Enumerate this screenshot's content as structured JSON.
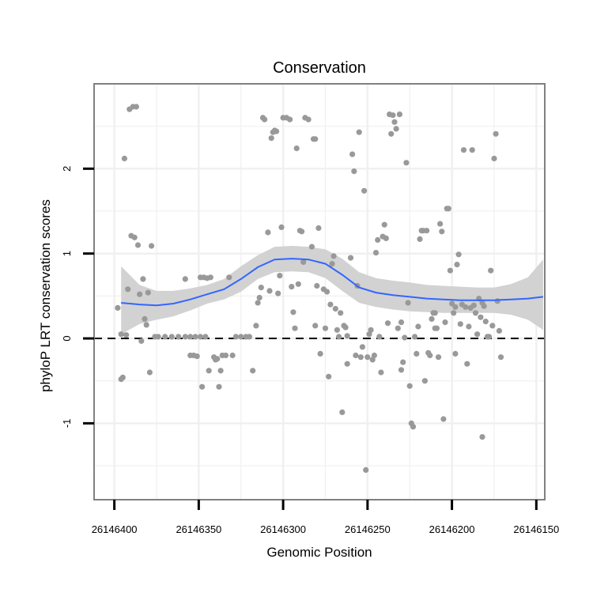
{
  "chart_data": {
    "type": "scatter",
    "title": "Conservation",
    "xlabel": "Genomic Position",
    "ylabel": "phyloP LRT conservation scores",
    "x_reversed": true,
    "xlim": [
      26146412,
      26146145
    ],
    "ylim": [
      -1.9,
      3.0
    ],
    "x_ticks": [
      26146400,
      26146350,
      26146300,
      26146250,
      26146200,
      26146150
    ],
    "x_tick_labels": [
      "26146400",
      "26146350",
      "26146300",
      "26146250",
      "26146200",
      "26146150"
    ],
    "y_ticks": [
      -1,
      0,
      1,
      2
    ],
    "y_tick_labels": [
      "-1",
      "0",
      "1",
      "2"
    ],
    "reference_line": {
      "y": 0,
      "style": "dashed"
    },
    "grid": true,
    "colors": {
      "points": "#999999",
      "smooth_line": "#3366ff",
      "ribbon": "#d2d2d2",
      "panel_border": "#808080",
      "grid": "#f0f0f0"
    },
    "smooth": {
      "x": [
        26146396,
        26146385,
        26146375,
        26146365,
        26146355,
        26146345,
        26146335,
        26146325,
        26146315,
        26146305,
        26146295,
        26146285,
        26146275,
        26146265,
        26146255,
        26146245,
        26146235,
        26146225,
        26146215,
        26146205,
        26146195,
        26146185,
        26146175,
        26146165,
        26146155,
        26146146
      ],
      "y": [
        0.42,
        0.4,
        0.39,
        0.41,
        0.46,
        0.52,
        0.58,
        0.7,
        0.84,
        0.93,
        0.94,
        0.93,
        0.88,
        0.75,
        0.6,
        0.54,
        0.51,
        0.49,
        0.47,
        0.46,
        0.45,
        0.45,
        0.45,
        0.46,
        0.47,
        0.49
      ],
      "lower": [
        0.05,
        0.17,
        0.22,
        0.26,
        0.33,
        0.41,
        0.46,
        0.55,
        0.7,
        0.78,
        0.79,
        0.78,
        0.71,
        0.56,
        0.42,
        0.37,
        0.34,
        0.32,
        0.31,
        0.3,
        0.3,
        0.3,
        0.3,
        0.28,
        0.22,
        0.1
      ],
      "upper": [
        0.85,
        0.63,
        0.56,
        0.56,
        0.59,
        0.63,
        0.7,
        0.85,
        0.98,
        1.08,
        1.09,
        1.08,
        1.05,
        0.94,
        0.78,
        0.71,
        0.68,
        0.66,
        0.63,
        0.62,
        0.61,
        0.6,
        0.6,
        0.64,
        0.72,
        0.93
      ]
    },
    "points": [
      [
        26146398,
        0.36
      ],
      [
        26146396,
        0.05
      ],
      [
        26146395,
        -0.46
      ],
      [
        26146396,
        -0.48
      ],
      [
        26146394,
        2.12
      ],
      [
        26146393,
        0.04
      ],
      [
        26146392,
        0.58
      ],
      [
        26146391,
        2.7
      ],
      [
        26146389,
        2.73
      ],
      [
        26146387,
        2.73
      ],
      [
        26146390,
        1.21
      ],
      [
        26146388,
        1.19
      ],
      [
        26146386,
        1.1
      ],
      [
        26146385,
        0.52
      ],
      [
        26146384,
        -0.03
      ],
      [
        26146383,
        0.7
      ],
      [
        26146382,
        0.23
      ],
      [
        26146381,
        0.16
      ],
      [
        26146380,
        0.54
      ],
      [
        26146379,
        -0.4
      ],
      [
        26146378,
        1.09
      ],
      [
        26146376,
        0.02
      ],
      [
        26146374,
        0.02
      ],
      [
        26146370,
        0.02
      ],
      [
        26146366,
        0.02
      ],
      [
        26146362,
        0.02
      ],
      [
        26146358,
        0.02
      ],
      [
        26146355,
        0.02
      ],
      [
        26146346,
        0.02
      ],
      [
        26146349,
        0.02
      ],
      [
        26146352,
        0.02
      ],
      [
        26146355,
        -0.2
      ],
      [
        26146353,
        -0.2
      ],
      [
        26146351,
        -0.21
      ],
      [
        26146349,
        0.72
      ],
      [
        26146347,
        0.72
      ],
      [
        26146345,
        0.71
      ],
      [
        26146343,
        0.72
      ],
      [
        26146348,
        -0.57
      ],
      [
        26146344,
        -0.38
      ],
      [
        26146341,
        -0.22
      ],
      [
        26146340,
        -0.25
      ],
      [
        26146339,
        -0.24
      ],
      [
        26146338,
        -0.57
      ],
      [
        26146337,
        -0.38
      ],
      [
        26146336,
        -0.2
      ],
      [
        26146334,
        -0.2
      ],
      [
        26146332,
        0.72
      ],
      [
        26146330,
        -0.2
      ],
      [
        26146328,
        0.02
      ],
      [
        26146325,
        0.02
      ],
      [
        26146322,
        0.02
      ],
      [
        26146320,
        0.02
      ],
      [
        26146318,
        -0.38
      ],
      [
        26146315,
        0.42
      ],
      [
        26146316,
        0.15
      ],
      [
        26146314,
        0.48
      ],
      [
        26146313,
        0.6
      ],
      [
        26146312,
        2.6
      ],
      [
        26146311,
        2.58
      ],
      [
        26146309,
        1.25
      ],
      [
        26146308,
        0.56
      ],
      [
        26146307,
        2.36
      ],
      [
        26146306,
        2.43
      ],
      [
        26146305,
        2.45
      ],
      [
        26146304,
        2.44
      ],
      [
        26146303,
        0.53
      ],
      [
        26146302,
        0.74
      ],
      [
        26146301,
        1.31
      ],
      [
        26146300,
        2.6
      ],
      [
        26146298,
        2.6
      ],
      [
        26146296,
        2.58
      ],
      [
        26146295,
        0.61
      ],
      [
        26146294,
        0.31
      ],
      [
        26146293,
        0.12
      ],
      [
        26146292,
        2.24
      ],
      [
        26146291,
        0.64
      ],
      [
        26146290,
        1.27
      ],
      [
        26146289,
        1.26
      ],
      [
        26146288,
        0.9
      ],
      [
        26146287,
        2.6
      ],
      [
        26146285,
        2.58
      ],
      [
        26146283,
        1.08
      ],
      [
        26146282,
        2.35
      ],
      [
        26146281,
        2.35
      ],
      [
        26146280,
        0.62
      ],
      [
        26146279,
        1.3
      ],
      [
        26146278,
        -0.18
      ],
      [
        26146276,
        0.58
      ],
      [
        26146275,
        0.12
      ],
      [
        26146274,
        0.55
      ],
      [
        26146273,
        -0.45
      ],
      [
        26146272,
        0.4
      ],
      [
        26146271,
        0.88
      ],
      [
        26146270,
        0.97
      ],
      [
        26146269,
        0.35
      ],
      [
        26146268,
        0.1
      ],
      [
        26146267,
        0.02
      ],
      [
        26146266,
        0.3
      ],
      [
        26146265,
        -0.87
      ],
      [
        26146264,
        0.15
      ],
      [
        26146263,
        0.13
      ],
      [
        26146262,
        -0.3
      ],
      [
        26146260,
        0.95
      ],
      [
        26146259,
        2.17
      ],
      [
        26146258,
        1.97
      ],
      [
        26146257,
        -0.2
      ],
      [
        26146256,
        0.62
      ],
      [
        26146255,
        2.43
      ],
      [
        26146254,
        -0.22
      ],
      [
        26146253,
        -0.1
      ],
      [
        26146252,
        1.74
      ],
      [
        26146251,
        -1.55
      ],
      [
        26146250,
        -0.22
      ],
      [
        26146249,
        0.05
      ],
      [
        26146248,
        0.1
      ],
      [
        26146247,
        -0.25
      ],
      [
        26146246,
        -0.2
      ],
      [
        26146245,
        1.01
      ],
      [
        26146244,
        1.16
      ],
      [
        26146243,
        0.02
      ],
      [
        26146242,
        -0.4
      ],
      [
        26146241,
        1.2
      ],
      [
        26146240,
        1.34
      ],
      [
        26146239,
        1.18
      ],
      [
        26146238,
        0.18
      ],
      [
        26146237,
        2.64
      ],
      [
        26146236,
        2.41
      ],
      [
        26146235,
        2.63
      ],
      [
        26146234,
        2.55
      ],
      [
        26146233,
        2.47
      ],
      [
        26146232,
        0.12
      ],
      [
        26146231,
        2.64
      ],
      [
        26146230,
        0.19
      ],
      [
        26146229,
        -0.28
      ],
      [
        26146228,
        0.01
      ],
      [
        26146227,
        2.07
      ],
      [
        26146226,
        0.42
      ],
      [
        26146225,
        -0.56
      ],
      [
        26146224,
        -1.0
      ],
      [
        26146223,
        -1.04
      ],
      [
        26146222,
        0.02
      ],
      [
        26146221,
        -0.18
      ],
      [
        26146220,
        0.14
      ],
      [
        26146219,
        1.17
      ],
      [
        26146218,
        1.27
      ],
      [
        26146217,
        1.27
      ],
      [
        26146216,
        -0.5
      ],
      [
        26146215,
        1.27
      ],
      [
        26146214,
        -0.17
      ],
      [
        26146213,
        -0.2
      ],
      [
        26146212,
        0.23
      ],
      [
        26146211,
        0.3
      ],
      [
        26146210,
        0.3
      ],
      [
        26146209,
        0.12
      ],
      [
        26146208,
        -0.22
      ],
      [
        26146207,
        1.35
      ],
      [
        26146206,
        1.26
      ],
      [
        26146205,
        -0.95
      ],
      [
        26146204,
        0.19
      ],
      [
        26146203,
        1.53
      ],
      [
        26146202,
        1.53
      ],
      [
        26146201,
        0.8
      ],
      [
        26146200,
        0.41
      ],
      [
        26146199,
        0.3
      ],
      [
        26146198,
        0.37
      ],
      [
        26146197,
        0.87
      ],
      [
        26146196,
        0.99
      ],
      [
        26146195,
        0.17
      ],
      [
        26146194,
        0.4
      ],
      [
        26146193,
        2.22
      ],
      [
        26146192,
        0.37
      ],
      [
        26146191,
        -0.3
      ],
      [
        26146190,
        0.14
      ],
      [
        26146189,
        0.36
      ],
      [
        26146188,
        2.22
      ],
      [
        26146187,
        0.39
      ],
      [
        26146186,
        0.3
      ],
      [
        26146185,
        0.05
      ],
      [
        26146184,
        0.47
      ],
      [
        26146183,
        0.25
      ],
      [
        26146182,
        -1.16
      ],
      [
        26146181,
        0.38
      ],
      [
        26146180,
        0.2
      ],
      [
        26146179,
        0.02
      ],
      [
        26146178,
        0.02
      ],
      [
        26146177,
        0.8
      ],
      [
        26146176,
        0.15
      ],
      [
        26146175,
        2.12
      ],
      [
        26146174,
        2.41
      ],
      [
        26146173,
        0.44
      ],
      [
        26146172,
        0.09
      ],
      [
        26146171,
        -0.22
      ],
      [
        26146182,
        0.42
      ],
      [
        26146198,
        -0.18
      ],
      [
        26146210,
        0.12
      ],
      [
        26146230,
        -0.37
      ],
      [
        26146262,
        0.03
      ],
      [
        26146281,
        0.15
      ],
      [
        26146358,
        0.7
      ]
    ]
  }
}
